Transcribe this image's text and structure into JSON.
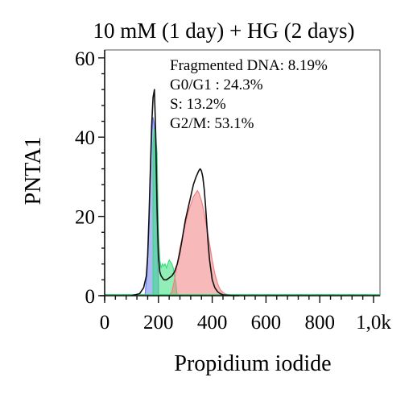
{
  "chart_data": {
    "type": "area",
    "title": "10 mM (1 day) + HG (2 days)",
    "xlabel": "Propidium iodide",
    "ylabel": "PNTA1",
    "xlim": [
      0,
      1024
    ],
    "ylim": [
      0,
      62
    ],
    "x_ticks": [
      0,
      200,
      400,
      600,
      800,
      1000
    ],
    "x_tick_labels": [
      "0",
      "200",
      "400",
      "600",
      "800",
      "1,0k"
    ],
    "y_ticks": [
      0,
      20,
      40,
      60
    ],
    "y_tick_labels": [
      "0",
      "20",
      "40",
      "60"
    ],
    "grid": false,
    "annotations": [
      "Fragmented DNA: 8.19%",
      "G0/G1 : 24.3%",
      "S: 13.2%",
      "G2/M: 53.1%"
    ],
    "series": [
      {
        "color": "#6d7ff0",
        "x": [
          150,
          158,
          165,
          170,
          175,
          180,
          185,
          190,
          195,
          200
        ],
        "y": [
          0,
          6,
          18,
          32,
          40,
          45,
          43,
          30,
          15,
          3
        ]
      },
      {
        "color": "#35e07a",
        "x": [
          180,
          185,
          190,
          195,
          200,
          205,
          210,
          215,
          220,
          225,
          230,
          235,
          240,
          245,
          250,
          255,
          260,
          265,
          270
        ],
        "y": [
          38,
          42,
          40,
          36,
          16,
          9,
          7,
          8,
          7.5,
          8,
          7,
          8,
          9,
          8.5,
          8,
          7,
          5,
          3,
          0
        ]
      },
      {
        "color": "#f08080",
        "x": [
          240,
          250,
          260,
          270,
          280,
          290,
          300,
          310,
          320,
          330,
          340,
          345,
          350,
          360,
          370,
          380,
          390,
          400,
          410,
          420,
          430,
          440,
          450,
          460,
          470,
          480
        ],
        "y": [
          0,
          1,
          4,
          8,
          12,
          15,
          18,
          21,
          23,
          25,
          26,
          26.5,
          26,
          24,
          21,
          17,
          13,
          9,
          5.5,
          3,
          1.5,
          0.8,
          0.4,
          0.2,
          0.1,
          0
        ]
      },
      {
        "color": "#33d066",
        "x": [
          0,
          1024
        ],
        "y": [
          0.2,
          0.2
        ]
      },
      {
        "color": "#111111",
        "x": [
          100,
          130,
          145,
          155,
          160,
          165,
          170,
          175,
          180,
          185,
          190,
          195,
          200,
          205,
          210,
          215,
          220,
          230,
          240,
          250,
          260,
          270,
          280,
          290,
          300,
          310,
          320,
          330,
          340,
          350,
          355,
          360,
          365,
          370,
          375,
          380,
          385,
          390,
          400,
          410,
          420,
          430,
          440,
          460,
          480,
          500
        ],
        "y": [
          0,
          0.5,
          2,
          5,
          10,
          20,
          32,
          43,
          50,
          52,
          40,
          22,
          10,
          6,
          5,
          4.5,
          4,
          4,
          4.5,
          5,
          6,
          8,
          11,
          15,
          19,
          22,
          25,
          28,
          30,
          31.5,
          32,
          31.5,
          30,
          27,
          23,
          18,
          13,
          9,
          4,
          2,
          1,
          0.5,
          0.2,
          0.1,
          0,
          0
        ]
      }
    ]
  }
}
